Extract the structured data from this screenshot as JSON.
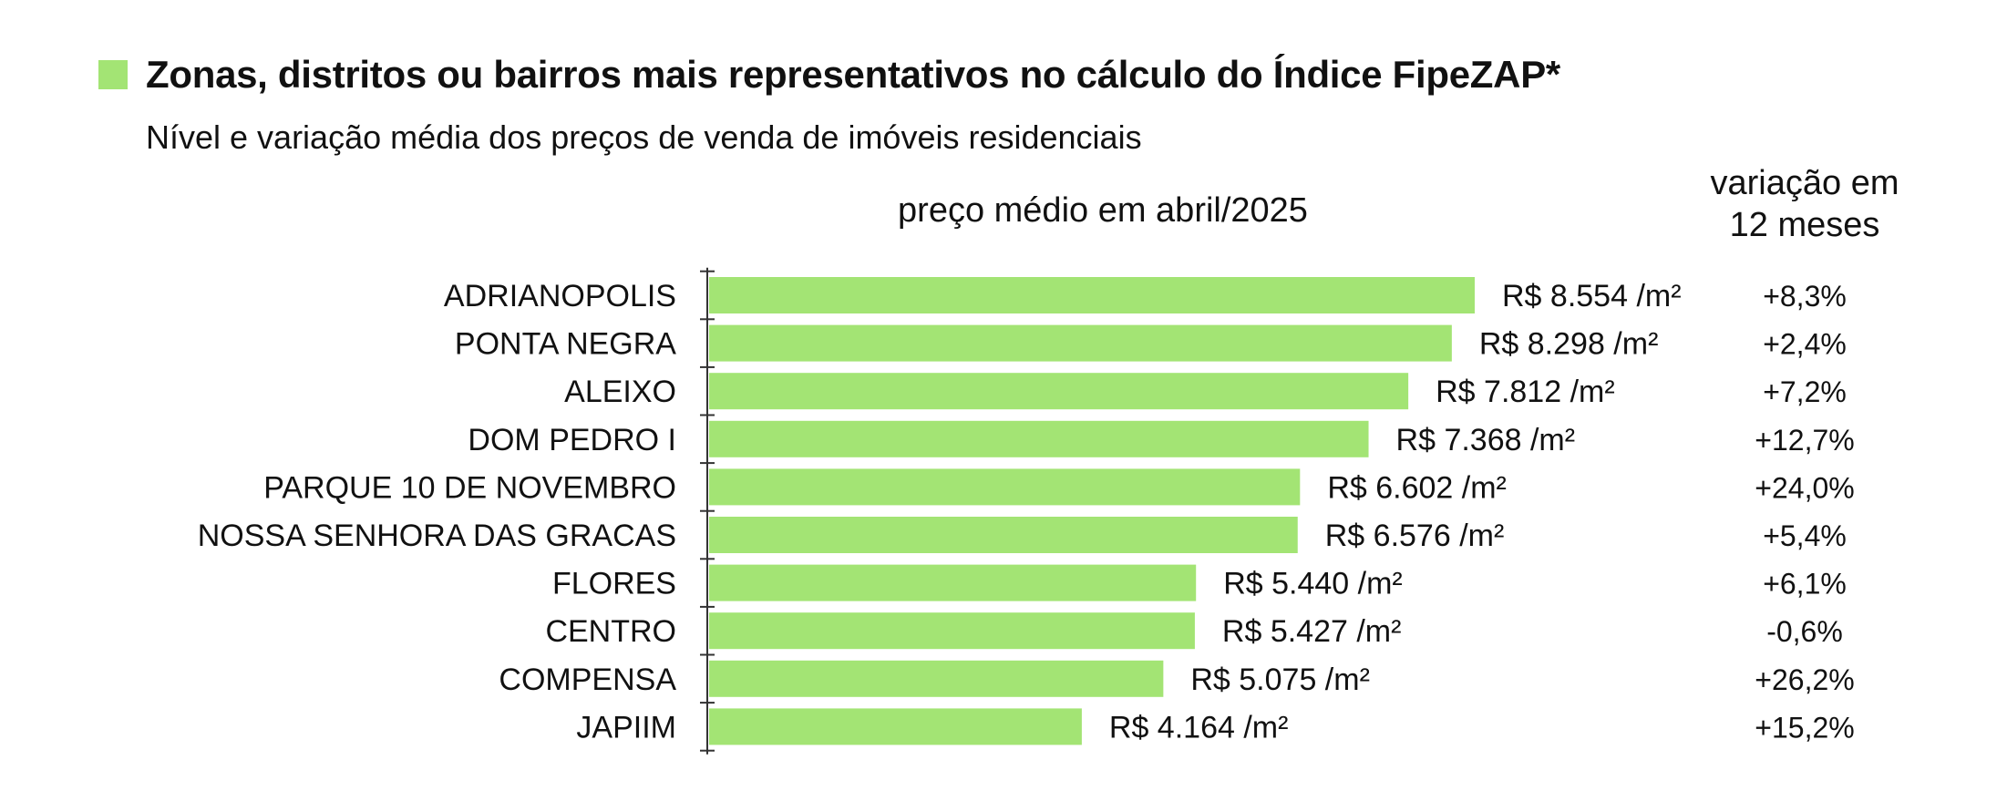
{
  "title": "Zonas, distritos ou bairros mais representativos no cálculo do Índice FipeZAP*",
  "subtitle": "Nível e variação média dos preços de venda de imóveis residenciais",
  "price_header": "preço médio em abril/2025",
  "variation_header_line1": "variação em",
  "variation_header_line2": "12 meses",
  "colors": {
    "bar": "#a3e474",
    "text": "#111111",
    "axis": "#333333"
  },
  "chart_data": {
    "type": "bar",
    "orientation": "horizontal",
    "title": "Zonas, distritos ou bairros mais representativos no cálculo do Índice FipeZAP*",
    "subtitle": "Nível e variação média dos preços de venda de imóveis residenciais",
    "xlabel": "preço médio em abril/2025",
    "ylabel": "",
    "unit": "R$/m²",
    "xlim": [
      0,
      8554
    ],
    "categories": [
      "ADRIANOPOLIS",
      "PONTA NEGRA",
      "ALEIXO",
      "DOM PEDRO I",
      "PARQUE 10 DE NOVEMBRO",
      "NOSSA SENHORA DAS GRACAS",
      "FLORES",
      "CENTRO",
      "COMPENSA",
      "JAPIIM"
    ],
    "values": [
      8554,
      8298,
      7812,
      7368,
      6602,
      6576,
      5440,
      5427,
      5075,
      4164
    ],
    "value_labels": [
      "R$ 8.554 /m²",
      "R$ 8.298 /m²",
      "R$ 7.812 /m²",
      "R$ 7.368 /m²",
      "R$ 6.602 /m²",
      "R$ 6.576 /m²",
      "R$ 5.440 /m²",
      "R$ 5.427 /m²",
      "R$ 5.075 /m²",
      "R$ 4.164 /m²"
    ],
    "variation_12m": [
      "+8,3%",
      "+2,4%",
      "+7,2%",
      "+12,7%",
      "+24,0%",
      "+5,4%",
      "+6,1%",
      "-0,6%",
      "+26,2%",
      "+15,2%"
    ]
  }
}
